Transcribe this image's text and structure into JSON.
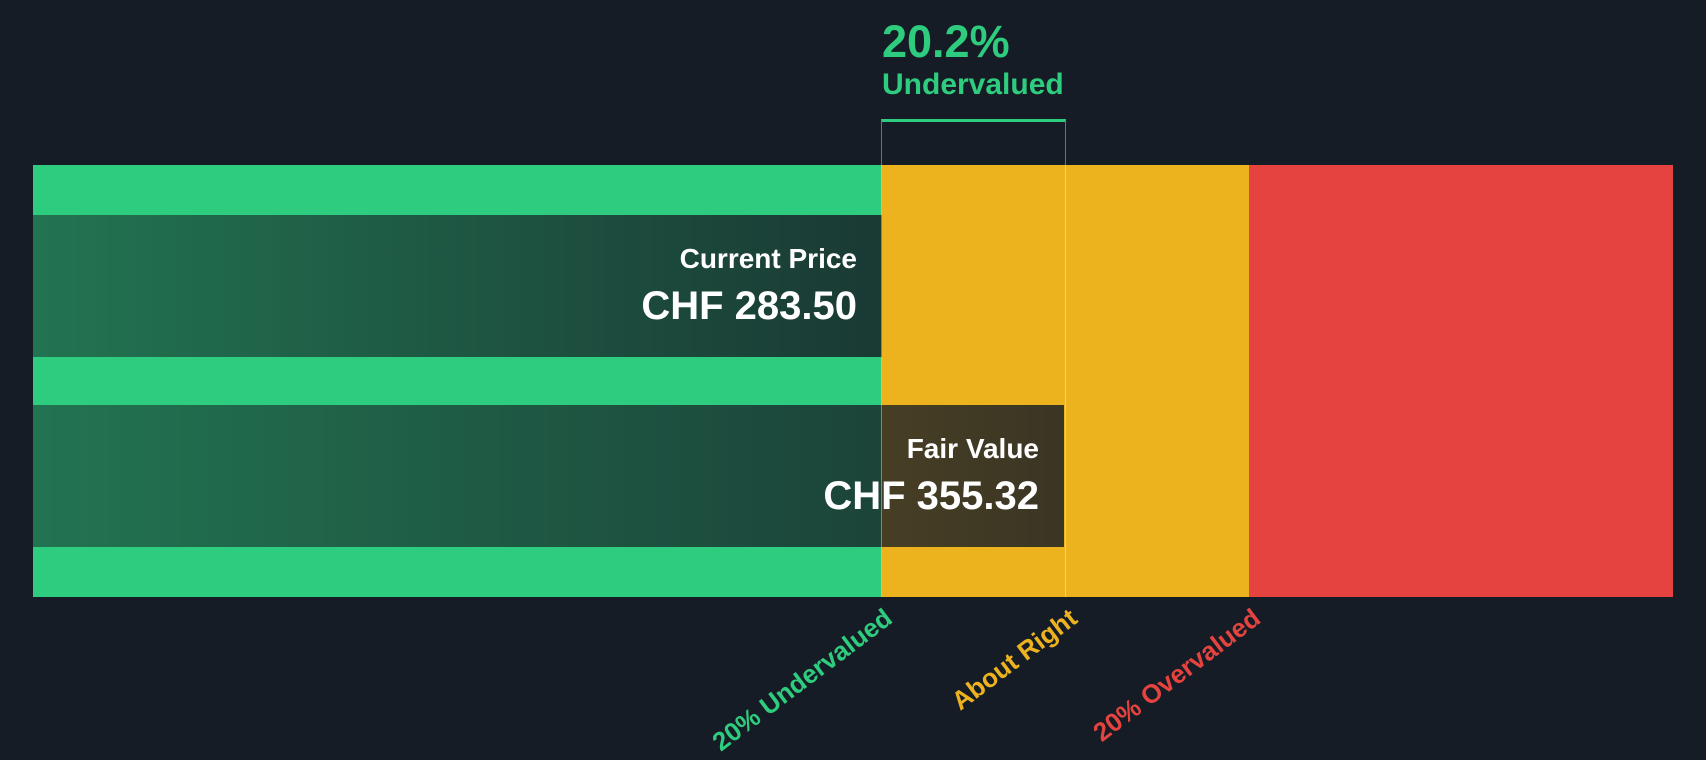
{
  "ui": {
    "headline": {
      "percent": "20.2%",
      "label": "Undervalued"
    },
    "current_price": {
      "label": "Current Price",
      "value": "CHF 283.50"
    },
    "fair_value": {
      "label": "Fair Value",
      "value": "CHF 355.32"
    },
    "axis": {
      "undervalued": "20% Undervalued",
      "about_right": "About Right",
      "overvalued": "20% Overvalued"
    }
  },
  "chart_data": {
    "type": "bar",
    "orientation": "horizontal",
    "series": [
      {
        "name": "Current Price",
        "value": 283.5,
        "currency": "CHF"
      },
      {
        "name": "Fair Value",
        "value": 355.32,
        "currency": "CHF"
      }
    ],
    "annotation": {
      "percent": 20.2,
      "text": "20.2% Undervalued",
      "color": "#2ECC7E"
    },
    "zones": [
      {
        "label": "20% Undervalued",
        "color": "#2ECC7E"
      },
      {
        "label": "About Right",
        "color": "#ECB31E"
      },
      {
        "label": "20% Overvalued",
        "color": "#E4433F"
      }
    ],
    "colors": {
      "background": "#161C25",
      "bar_overlay": "rgba(22,28,37,0.8)",
      "text": "#FFFFFF"
    },
    "legend_position": "none",
    "grid": false
  }
}
